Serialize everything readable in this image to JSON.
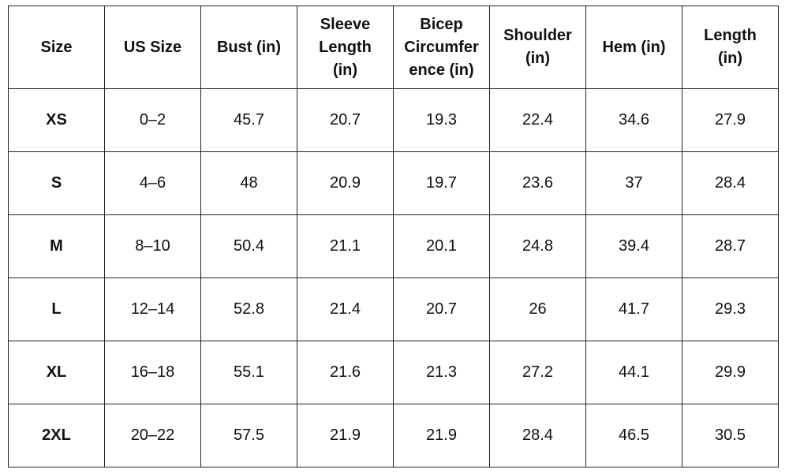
{
  "table": {
    "headers": [
      [
        "Size"
      ],
      [
        "US Size"
      ],
      [
        "Bust (in)"
      ],
      [
        "Sleeve",
        "Length",
        "(in)"
      ],
      [
        "Bicep",
        "Circumfer",
        "ence (in)"
      ],
      [
        "Shoulder",
        "(in)"
      ],
      [
        "Hem (in)"
      ],
      [
        "Length",
        "(in)"
      ]
    ],
    "rows": [
      [
        "XS",
        "0–2",
        "45.7",
        "20.7",
        "19.3",
        "22.4",
        "34.6",
        "27.9"
      ],
      [
        "S",
        "4–6",
        "48",
        "20.9",
        "19.7",
        "23.6",
        "37",
        "28.4"
      ],
      [
        "M",
        "8–10",
        "50.4",
        "21.1",
        "20.1",
        "24.8",
        "39.4",
        "28.7"
      ],
      [
        "L",
        "12–14",
        "52.8",
        "21.4",
        "20.7",
        "26",
        "41.7",
        "29.3"
      ],
      [
        "XL",
        "16–18",
        "55.1",
        "21.6",
        "21.3",
        "27.2",
        "44.1",
        "29.9"
      ],
      [
        "2XL",
        "20–22",
        "57.5",
        "21.9",
        "21.9",
        "28.4",
        "46.5",
        "30.5"
      ]
    ]
  }
}
